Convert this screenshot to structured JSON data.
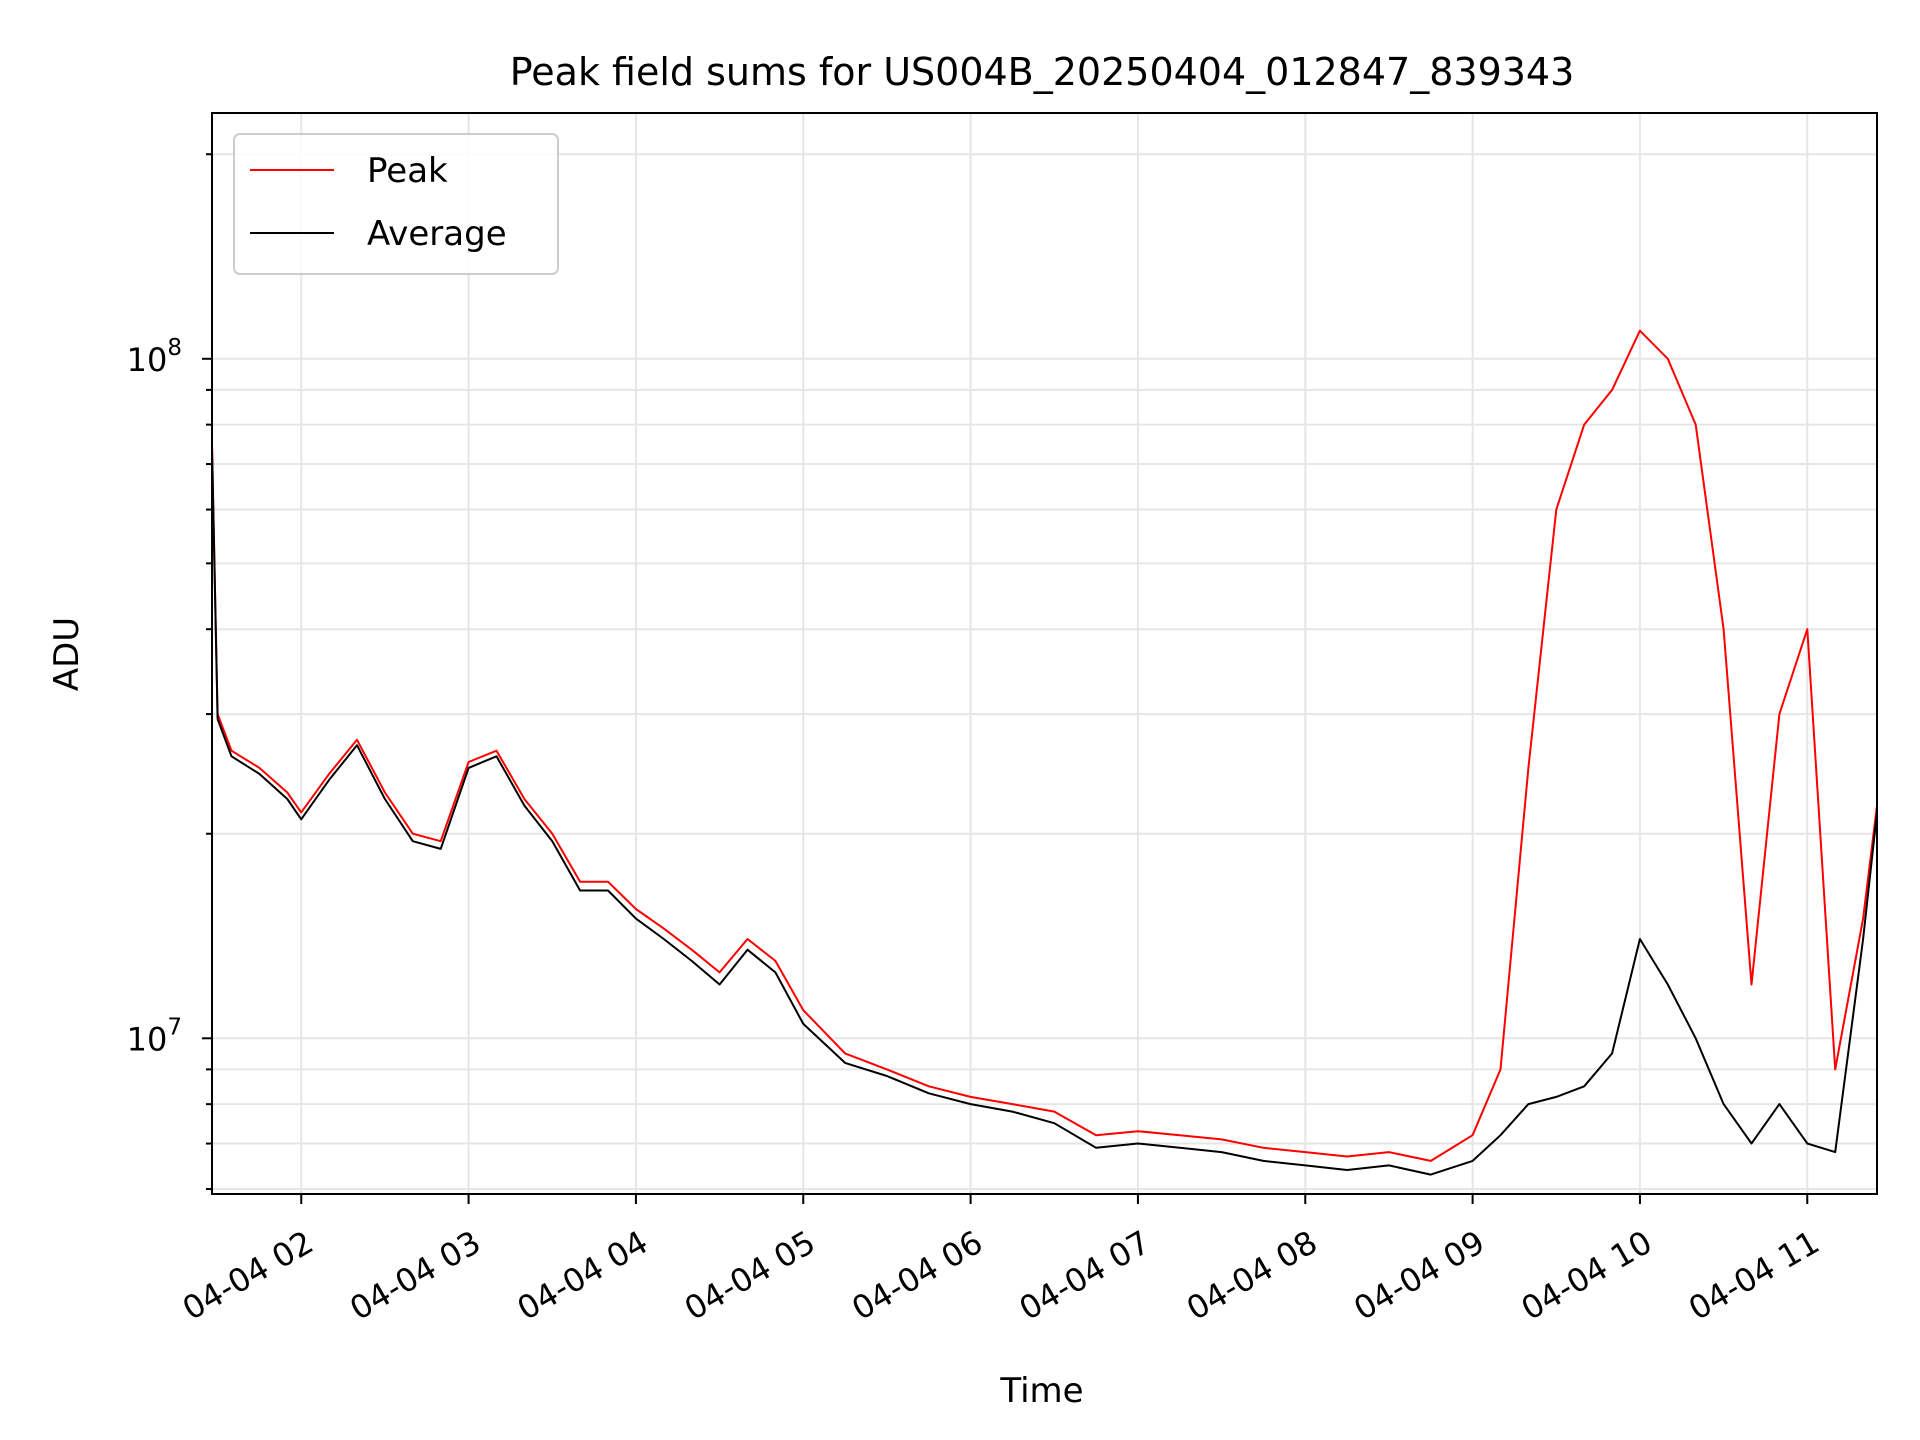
{
  "chart_data": {
    "type": "line",
    "title": "Peak field sums for US004B_20250404_012847_839343",
    "xlabel": "Time",
    "ylabel": "ADU",
    "yscale": "log",
    "ylim": [
      5900000,
      230000000
    ],
    "xlim": [
      "04-04 01:28",
      "04-04 11:25"
    ],
    "x_ticks": [
      "04-04 02",
      "04-04 03",
      "04-04 04",
      "04-04 05",
      "04-04 06",
      "04-04 07",
      "04-04 08",
      "04-04 09",
      "04-04 10",
      "04-04 11"
    ],
    "y_tick_labels": [
      {
        "value": 10000000,
        "base": "10",
        "exp": "7"
      },
      {
        "value": 100000000,
        "base": "10",
        "exp": "8"
      }
    ],
    "grid": true,
    "legend_position": "upper-left",
    "x": [
      "04-04 01:28",
      "04-04 01:30",
      "04-04 01:35",
      "04-04 01:45",
      "04-04 01:55",
      "04-04 02:00",
      "04-04 02:10",
      "04-04 02:20",
      "04-04 02:30",
      "04-04 02:40",
      "04-04 02:50",
      "04-04 03:00",
      "04-04 03:10",
      "04-04 03:20",
      "04-04 03:30",
      "04-04 03:40",
      "04-04 03:50",
      "04-04 04:00",
      "04-04 04:10",
      "04-04 04:20",
      "04-04 04:30",
      "04-04 04:40",
      "04-04 04:50",
      "04-04 05:00",
      "04-04 05:15",
      "04-04 05:30",
      "04-04 05:45",
      "04-04 06:00",
      "04-04 06:15",
      "04-04 06:30",
      "04-04 06:45",
      "04-04 07:00",
      "04-04 07:15",
      "04-04 07:30",
      "04-04 07:45",
      "04-04 08:00",
      "04-04 08:15",
      "04-04 08:30",
      "04-04 08:45",
      "04-04 09:00",
      "04-04 09:10",
      "04-04 09:20",
      "04-04 09:30",
      "04-04 09:40",
      "04-04 09:50",
      "04-04 10:00",
      "04-04 10:10",
      "04-04 10:20",
      "04-04 10:30",
      "04-04 10:40",
      "04-04 10:50",
      "04-04 11:00",
      "04-04 11:10",
      "04-04 11:20",
      "04-04 11:25"
    ],
    "series": [
      {
        "name": "Peak",
        "color": "#ff0000",
        "values": [
          75000000,
          30000000,
          26500000,
          25000000,
          23000000,
          21500000,
          24500000,
          27500000,
          23000000,
          20000000,
          19500000,
          25500000,
          26500000,
          22500000,
          20000000,
          17000000,
          17000000,
          15500000,
          14500000,
          13500000,
          12500000,
          14000000,
          13000000,
          11000000,
          9500000,
          9000000,
          8500000,
          8200000,
          8000000,
          7800000,
          7200000,
          7300000,
          7200000,
          7100000,
          6900000,
          6800000,
          6700000,
          6800000,
          6600000,
          7200000,
          9000000,
          25000000,
          60000000,
          80000000,
          90000000,
          110000000,
          100000000,
          80000000,
          40000000,
          12000000,
          30000000,
          40000000,
          9000000,
          15000000,
          22000000
        ]
      },
      {
        "name": "Average",
        "color": "#000000",
        "values": [
          74000000,
          29500000,
          26000000,
          24500000,
          22500000,
          21000000,
          24000000,
          27000000,
          22500000,
          19500000,
          19000000,
          25000000,
          26000000,
          22000000,
          19500000,
          16500000,
          16500000,
          15000000,
          14000000,
          13000000,
          12000000,
          13500000,
          12500000,
          10500000,
          9200000,
          8800000,
          8300000,
          8000000,
          7800000,
          7500000,
          6900000,
          7000000,
          6900000,
          6800000,
          6600000,
          6500000,
          6400000,
          6500000,
          6300000,
          6600000,
          7200000,
          8000000,
          8200000,
          8500000,
          9500000,
          14000000,
          12000000,
          10000000,
          8000000,
          7000000,
          8000000,
          7000000,
          6800000,
          14000000,
          21500000
        ]
      }
    ],
    "annotations": []
  }
}
